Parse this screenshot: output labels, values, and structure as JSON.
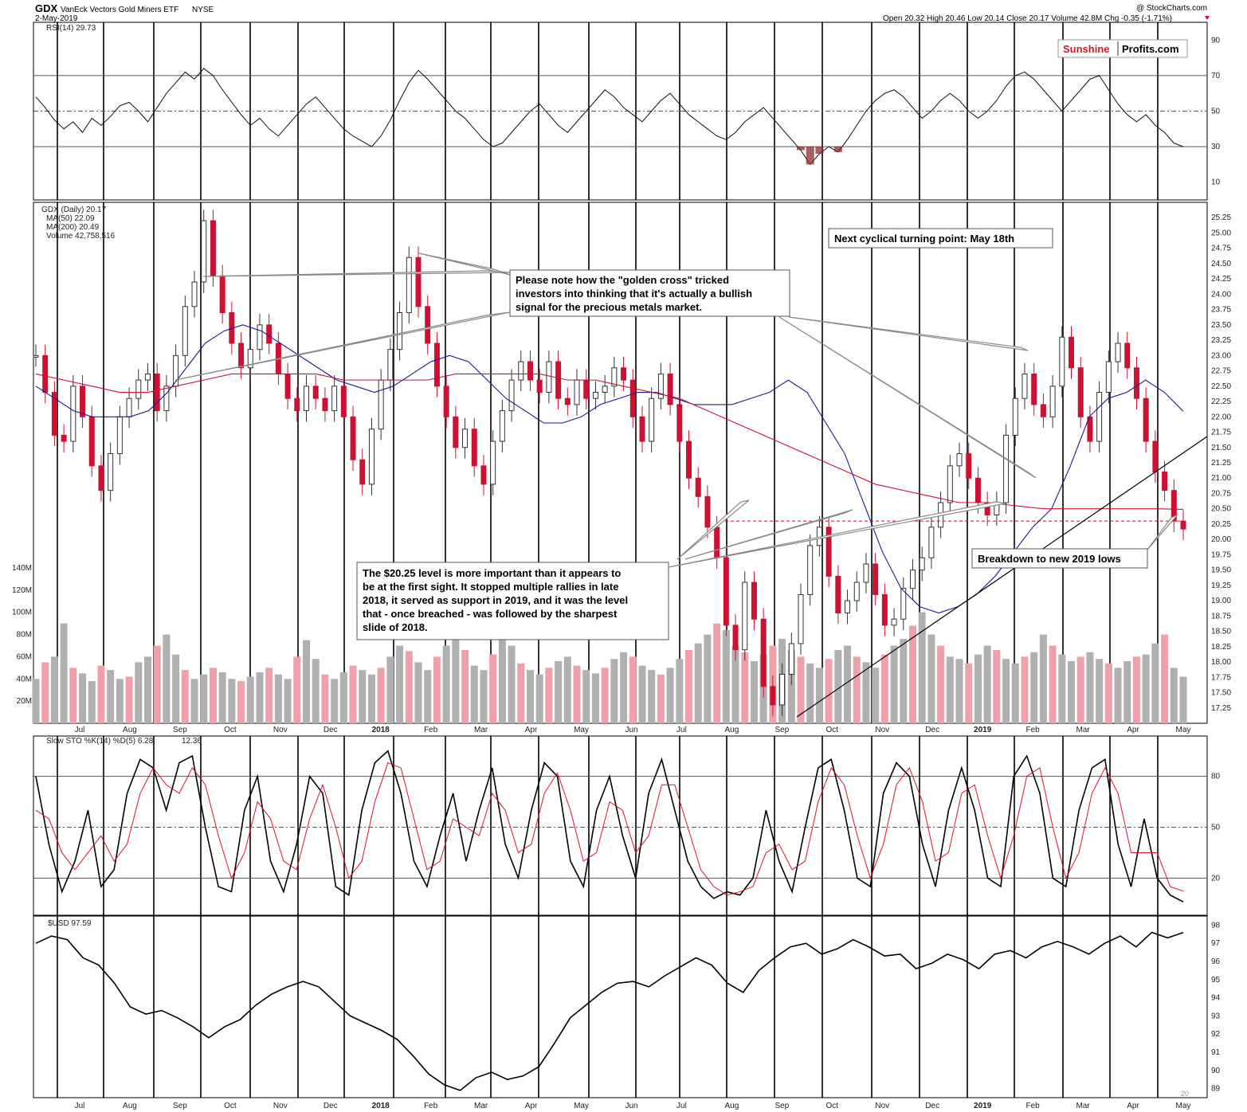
{
  "header": {
    "symbol": "GDX",
    "name": "VanEck Vectors Gold Miners ETF",
    "exchange": "NYSE",
    "date": "2-May-2019",
    "credit": "@ StockCharts.com",
    "ohlc": "Open 20.32  High 20.46  Low 20.14  Close 20.17  Volume 42.8M  Chg -0.35 (-1.71%)"
  },
  "logo": {
    "part1": "Sunshine",
    "part2": "Profits.com",
    "part1_color": "#e0102a"
  },
  "chart_data": [
    {
      "panel": "rsi",
      "type": "line",
      "label": "RSI(14) 29.73",
      "ylim": [
        0,
        100
      ],
      "ticks": [
        10,
        30,
        50,
        70,
        90
      ],
      "reference_lines": [
        30,
        50,
        70
      ],
      "values": [
        58,
        52,
        45,
        40,
        44,
        38,
        46,
        42,
        47,
        53,
        55,
        50,
        44,
        52,
        60,
        66,
        72,
        68,
        74,
        70,
        62,
        55,
        48,
        42,
        46,
        40,
        36,
        42,
        48,
        54,
        58,
        52,
        46,
        40,
        36,
        33,
        30,
        36,
        45,
        56,
        66,
        73,
        68,
        62,
        56,
        50,
        46,
        40,
        34,
        30,
        32,
        38,
        44,
        50,
        54,
        48,
        42,
        38,
        44,
        50,
        56,
        62,
        58,
        52,
        48,
        44,
        50,
        56,
        60,
        54,
        48,
        44,
        40,
        36,
        34,
        38,
        44,
        48,
        52,
        46,
        40,
        34,
        28,
        20,
        26,
        30,
        27,
        34,
        42,
        50,
        56,
        60,
        62,
        58,
        52,
        46,
        50,
        56,
        60,
        56,
        50,
        46,
        50,
        56,
        64,
        70,
        72,
        68,
        62,
        56,
        50,
        56,
        62,
        68,
        70,
        62,
        54,
        48,
        44,
        48,
        42,
        38,
        32,
        30
      ]
    },
    {
      "panel": "price",
      "type": "line",
      "legend": [
        "GDX (Daily) 20.17",
        "MA(50) 22.09",
        "MA(200) 20.49",
        "Volume 42,758,516"
      ],
      "ylim": [
        17.0,
        25.5
      ],
      "ticks": [
        17.25,
        17.5,
        17.75,
        18.0,
        18.25,
        18.5,
        18.75,
        19.0,
        19.25,
        19.5,
        19.75,
        20.0,
        20.25,
        20.5,
        20.75,
        21.0,
        21.25,
        21.5,
        21.75,
        22.0,
        22.25,
        22.5,
        22.75,
        23.0,
        23.25,
        23.5,
        23.75,
        24.0,
        24.25,
        24.5,
        24.75,
        25.0,
        25.25
      ],
      "x_labels": [
        "Jul",
        "Aug",
        "Sep",
        "Oct",
        "Nov",
        "Dec",
        "2018",
        "Feb",
        "Mar",
        "Apr",
        "May",
        "Jun",
        "Jul",
        "Aug",
        "Sep",
        "Oct",
        "Nov",
        "Dec",
        "2019",
        "Feb",
        "Mar",
        "Apr",
        "May"
      ],
      "series": [
        {
          "name": "GDX (Daily) 20.17",
          "color": "#333333",
          "values": [
            23.0,
            22.4,
            21.7,
            21.6,
            22.5,
            22.0,
            21.2,
            20.8,
            21.4,
            22.0,
            22.3,
            22.6,
            22.7,
            22.1,
            22.5,
            23.0,
            23.8,
            24.2,
            25.2,
            24.3,
            23.7,
            23.2,
            22.8,
            23.1,
            23.5,
            23.2,
            22.7,
            22.3,
            22.1,
            22.5,
            22.3,
            22.1,
            22.5,
            22.0,
            21.3,
            20.9,
            21.8,
            22.6,
            23.1,
            23.7,
            24.6,
            23.8,
            23.2,
            22.5,
            22.0,
            21.5,
            21.8,
            21.2,
            20.9,
            21.6,
            22.1,
            22.6,
            22.9,
            22.6,
            22.4,
            22.9,
            22.3,
            22.2,
            22.6,
            22.3,
            22.4,
            22.5,
            22.8,
            22.6,
            22.0,
            21.6,
            22.3,
            22.7,
            22.2,
            21.6,
            21.0,
            20.7,
            20.2,
            19.7,
            18.6,
            18.2,
            19.3,
            18.7,
            17.6,
            17.3,
            17.8,
            18.3,
            19.1,
            19.9,
            20.2,
            19.4,
            18.8,
            19.0,
            19.3,
            19.6,
            19.1,
            18.6,
            18.7,
            19.2,
            19.5,
            19.7,
            20.2,
            20.6,
            21.2,
            21.4,
            21.0,
            20.6,
            20.4,
            20.6,
            21.7,
            22.3,
            22.7,
            22.2,
            22.0,
            22.5,
            23.3,
            22.8,
            22.0,
            21.6,
            22.4,
            22.9,
            23.2,
            22.8,
            22.3,
            21.6,
            21.1,
            20.8,
            20.3,
            20.17
          ]
        },
        {
          "name": "MA(50) 22.09",
          "color": "#1a1a8c",
          "values": [
            22.5,
            22.3,
            22.1,
            22.0,
            22.0,
            22.0,
            22.1,
            22.4,
            22.8,
            23.2,
            23.4,
            23.5,
            23.4,
            23.2,
            23.0,
            22.8,
            22.6,
            22.5,
            22.4,
            22.5,
            22.7,
            22.9,
            23.0,
            22.9,
            22.6,
            22.3,
            22.1,
            21.9,
            21.9,
            22.0,
            22.2,
            22.3,
            22.4,
            22.4,
            22.3,
            22.2,
            22.2,
            22.2,
            22.3,
            22.4,
            22.6,
            22.4,
            21.9,
            21.4,
            20.6,
            19.8,
            19.2,
            18.9,
            18.8,
            18.9,
            19.1,
            19.4,
            19.8,
            20.2,
            20.5,
            21.2,
            22.0,
            22.3,
            22.4,
            22.6,
            22.4,
            22.09
          ]
        },
        {
          "name": "MA(200) 20.49",
          "color": "#cc1133",
          "values": [
            22.7,
            22.6,
            22.5,
            22.4,
            22.4,
            22.5,
            22.6,
            22.7,
            22.7,
            22.7,
            22.7,
            22.6,
            22.6,
            22.6,
            22.6,
            22.7,
            22.7,
            22.7,
            22.7,
            22.6,
            22.6,
            22.5,
            22.4,
            22.3,
            22.1,
            21.9,
            21.7,
            21.5,
            21.3,
            21.1,
            20.9,
            20.8,
            20.7,
            20.6,
            20.6,
            20.55,
            20.5,
            20.5,
            20.5,
            20.5,
            20.5,
            20.49
          ]
        }
      ],
      "volume": {
        "name": "Volume 42,758,516",
        "ylim": [
          0,
          140
        ],
        "ticks": [
          20,
          40,
          60,
          80,
          100,
          120,
          140
        ],
        "tick_labels": [
          "20M",
          "40M",
          "60M",
          "80M",
          "100M",
          "120M",
          "140M"
        ],
        "values": [
          40,
          55,
          60,
          90,
          50,
          45,
          38,
          52,
          48,
          40,
          42,
          55,
          60,
          70,
          80,
          62,
          48,
          40,
          44,
          50,
          46,
          40,
          38,
          42,
          46,
          50,
          44,
          40,
          60,
          75,
          58,
          44,
          40,
          46,
          52,
          48,
          44,
          50,
          60,
          70,
          65,
          55,
          48,
          60,
          70,
          80,
          66,
          52,
          48,
          62,
          78,
          70,
          54,
          48,
          44,
          50,
          56,
          60,
          52,
          48,
          45,
          50,
          58,
          64,
          60,
          52,
          48,
          44,
          50,
          58,
          66,
          72,
          80,
          90,
          84,
          70,
          64,
          56,
          62,
          70,
          76,
          66,
          60,
          54,
          50,
          58,
          66,
          70,
          60,
          55,
          50,
          62,
          70,
          76,
          88,
          100,
          80,
          70,
          60,
          58,
          54,
          62,
          70,
          66,
          58,
          54,
          60,
          64,
          80,
          70,
          62,
          56,
          60,
          64,
          58,
          54,
          50,
          56,
          60,
          62,
          72,
          80,
          50,
          42
        ]
      },
      "reference_lines": [
        20.3
      ]
    },
    {
      "panel": "stochastic",
      "type": "line",
      "label": "Slow STO %K(14) %D(5) 6.28, 12.36",
      "label_k": "Slow STO %K(14) %D(5) 6.28,",
      "label_d": "12.36",
      "ylim": [
        0,
        100
      ],
      "ticks": [
        20,
        50,
        80
      ],
      "reference_lines": [
        20,
        50,
        80
      ],
      "series": [
        {
          "name": "%K",
          "color": "#000000",
          "values": [
            80,
            40,
            12,
            30,
            60,
            15,
            25,
            70,
            90,
            85,
            60,
            88,
            92,
            50,
            15,
            12,
            60,
            80,
            30,
            12,
            40,
            80,
            70,
            15,
            10,
            60,
            88,
            95,
            70,
            30,
            15,
            45,
            70,
            30,
            60,
            85,
            40,
            20,
            60,
            88,
            80,
            30,
            15,
            60,
            80,
            45,
            20,
            70,
            90,
            60,
            30,
            15,
            8,
            12,
            10,
            20,
            60,
            30,
            12,
            50,
            85,
            90,
            60,
            20,
            15,
            70,
            88,
            80,
            40,
            15,
            60,
            85,
            60,
            20,
            15,
            80,
            92,
            70,
            20,
            15,
            60,
            85,
            90,
            40,
            15,
            55,
            20,
            10,
            6
          ]
        },
        {
          "name": "%D",
          "color": "#e0102a",
          "values": [
            60,
            55,
            35,
            25,
            35,
            45,
            30,
            40,
            70,
            85,
            75,
            70,
            85,
            75,
            45,
            20,
            35,
            65,
            55,
            30,
            25,
            55,
            75,
            50,
            20,
            30,
            65,
            88,
            85,
            55,
            25,
            30,
            55,
            50,
            45,
            70,
            60,
            35,
            40,
            70,
            82,
            60,
            30,
            35,
            65,
            60,
            35,
            45,
            75,
            75,
            50,
            25,
            15,
            10,
            12,
            15,
            35,
            40,
            25,
            30,
            65,
            85,
            75,
            45,
            20,
            40,
            75,
            85,
            65,
            30,
            35,
            70,
            75,
            45,
            20,
            45,
            80,
            85,
            50,
            20,
            35,
            70,
            85,
            70,
            35,
            35,
            35,
            15,
            12.36
          ]
        }
      ]
    },
    {
      "panel": "usd",
      "type": "line",
      "label": "$USD 97.59",
      "ylim": [
        88.5,
        98.5
      ],
      "ticks": [
        89,
        90,
        91,
        92,
        93,
        94,
        95,
        96,
        97,
        98
      ],
      "series": [
        {
          "name": "$USD 97.59",
          "color": "#000000",
          "values": [
            97.0,
            97.4,
            97.2,
            96.2,
            95.8,
            94.8,
            93.5,
            93.1,
            93.3,
            92.9,
            92.4,
            91.8,
            92.4,
            92.8,
            93.6,
            94.2,
            94.6,
            94.9,
            94.6,
            93.8,
            93.0,
            92.6,
            92.2,
            91.7,
            90.8,
            89.8,
            89.2,
            88.9,
            89.6,
            89.9,
            89.5,
            89.7,
            90.2,
            91.5,
            92.9,
            93.6,
            94.3,
            94.8,
            94.9,
            94.6,
            95.2,
            95.7,
            96.2,
            95.8,
            94.8,
            94.3,
            95.5,
            96.2,
            96.8,
            97.0,
            96.4,
            96.7,
            97.2,
            96.8,
            96.3,
            96.4,
            95.6,
            95.9,
            96.4,
            96.1,
            95.6,
            96.4,
            96.6,
            96.2,
            96.8,
            97.1,
            96.8,
            96.4,
            97.0,
            97.4,
            96.8,
            97.6,
            97.3,
            97.59
          ]
        }
      ]
    }
  ],
  "annotations": {
    "next_turning_point": "Next cyclical turning point: May 18th",
    "golden_cross_lines": [
      "Please note how the \"golden cross\" tricked",
      "investors into thinking that it's actually a bullish",
      "signal for the precious metals market."
    ],
    "level_lines": [
      "The $20.25 level is more important than it appears to",
      "be at the first sight. It stopped multiple rallies in late",
      "2018, it served as support in 2019, and it was the level",
      "that - once breached - was followed by the sharpest",
      "slide of 2018."
    ],
    "breakdown": "Breakdown to new 2019 lows",
    "breakdown_color": "#cc1133",
    "corner_tag": "20"
  },
  "colors": {
    "up_bar": "#333333",
    "down_bar": "#cc1133",
    "vol_up": "#b0b0b0",
    "vol_down": "#f0a0a8",
    "rsi_fill": "#8a2a2a"
  }
}
